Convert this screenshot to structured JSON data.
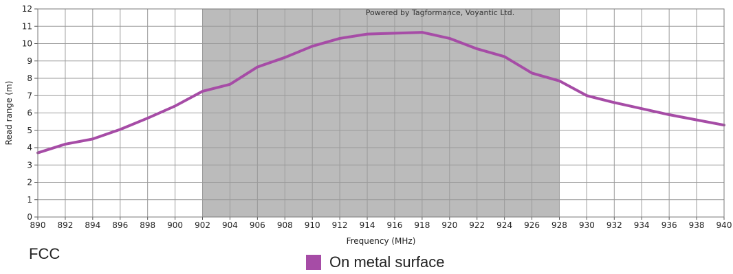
{
  "chart_data": {
    "type": "line",
    "title": "",
    "watermark": "Powered by Tagformance, Voyantic Ltd.",
    "xlabel": "Frequency (MHz)",
    "ylabel": "Read range (m)",
    "xlim": [
      890,
      940
    ],
    "ylim": [
      0,
      12
    ],
    "xticks": [
      890,
      892,
      894,
      896,
      898,
      900,
      902,
      904,
      906,
      908,
      910,
      912,
      914,
      916,
      918,
      920,
      922,
      924,
      926,
      928,
      930,
      932,
      934,
      936,
      938,
      940
    ],
    "yticks": [
      0,
      1,
      2,
      3,
      4,
      5,
      6,
      7,
      8,
      9,
      10,
      11,
      12
    ],
    "grid": true,
    "highlight_band": {
      "from": 902,
      "to": 928,
      "color": "#bbbbbb"
    },
    "series": [
      {
        "name": "On metal surface",
        "color": "#a64ca6",
        "x": [
          890,
          892,
          894,
          896,
          898,
          900,
          902,
          904,
          906,
          908,
          910,
          912,
          914,
          916,
          918,
          920,
          922,
          924,
          926,
          928,
          930,
          932,
          934,
          936,
          938,
          940
        ],
        "y": [
          3.7,
          4.2,
          4.5,
          5.05,
          5.7,
          6.4,
          7.25,
          7.65,
          8.65,
          9.2,
          9.85,
          10.3,
          10.55,
          10.6,
          10.65,
          10.3,
          9.7,
          9.25,
          8.3,
          7.85,
          7.0,
          6.6,
          6.25,
          5.9,
          5.6,
          5.3
        ]
      }
    ]
  },
  "region_label": "FCC",
  "legend": {
    "label": "On metal surface",
    "color": "#a64ca6"
  }
}
